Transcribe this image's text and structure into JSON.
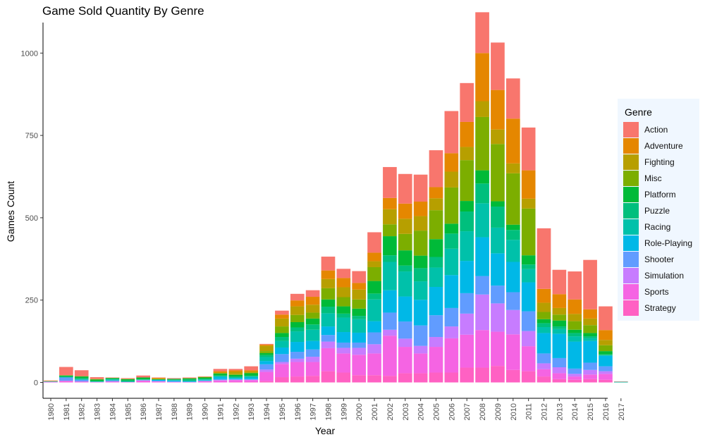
{
  "chart_data": {
    "type": "bar",
    "stacked": true,
    "title": "Game Sold Quantity By Genre",
    "xlabel": "Year",
    "ylabel": "Games Count",
    "ylim": [
      0,
      1090
    ],
    "yticks": [
      0,
      250,
      500,
      750,
      1000
    ],
    "legend_title": "Genre",
    "legend_position": "right",
    "grid": false,
    "categories": [
      "1980",
      "1981",
      "1982",
      "1983",
      "1984",
      "1985",
      "1986",
      "1987",
      "1988",
      "1989",
      "1990",
      "1991",
      "1992",
      "1993",
      "1994",
      "1995",
      "1996",
      "1997",
      "1998",
      "1999",
      "2000",
      "2001",
      "2002",
      "2003",
      "2004",
      "2005",
      "2006",
      "2007",
      "2008",
      "2009",
      "2010",
      "2011",
      "2012",
      "2013",
      "2014",
      "2015",
      "2016",
      "2017"
    ],
    "series": [
      {
        "name": "Strategy",
        "color": "#ff61c3",
        "values": [
          0,
          0,
          0,
          0,
          0,
          0,
          0,
          0,
          0,
          0,
          0,
          0,
          1,
          1,
          4,
          16,
          18,
          20,
          34,
          30,
          22,
          22,
          20,
          28,
          28,
          30,
          30,
          45,
          45,
          50,
          38,
          34,
          18,
          10,
          8,
          10,
          8,
          0
        ]
      },
      {
        "name": "Sports",
        "color": "#f564e3",
        "values": [
          1,
          5,
          3,
          1,
          3,
          1,
          6,
          3,
          1,
          1,
          4,
          6,
          6,
          6,
          28,
          40,
          44,
          42,
          70,
          58,
          62,
          66,
          122,
          80,
          60,
          78,
          104,
          100,
          114,
          104,
          108,
          76,
          22,
          18,
          10,
          14,
          18,
          0
        ]
      },
      {
        "name": "Simulation",
        "color": "#c77cff",
        "values": [
          0,
          0,
          0,
          0,
          0,
          0,
          0,
          0,
          1,
          0,
          0,
          1,
          1,
          1,
          7,
          6,
          10,
          16,
          20,
          17,
          21,
          28,
          18,
          25,
          23,
          30,
          36,
          64,
          108,
          86,
          74,
          46,
          18,
          18,
          8,
          14,
          8,
          0
        ]
      },
      {
        "name": "Shooter",
        "color": "#619cff",
        "values": [
          2,
          10,
          5,
          1,
          3,
          1,
          1,
          2,
          1,
          1,
          1,
          3,
          2,
          2,
          16,
          24,
          21,
          22,
          20,
          16,
          16,
          36,
          52,
          52,
          62,
          66,
          56,
          62,
          56,
          54,
          54,
          60,
          30,
          28,
          16,
          22,
          15,
          0
        ]
      },
      {
        "name": "Role-Playing",
        "color": "#00b8e7",
        "values": [
          0,
          0,
          0,
          0,
          0,
          0,
          1,
          3,
          3,
          2,
          2,
          7,
          3,
          5,
          10,
          20,
          30,
          26,
          26,
          32,
          30,
          34,
          68,
          76,
          78,
          86,
          100,
          98,
          118,
          98,
          92,
          88,
          62,
          74,
          82,
          66,
          32,
          0
        ]
      },
      {
        "name": "Racing",
        "color": "#00c1aa",
        "values": [
          0,
          1,
          2,
          1,
          3,
          0,
          1,
          0,
          1,
          0,
          2,
          2,
          2,
          4,
          12,
          20,
          32,
          34,
          40,
          44,
          41,
          66,
          86,
          76,
          56,
          59,
          80,
          90,
          103,
          78,
          67,
          40,
          18,
          14,
          16,
          8,
          2,
          2
        ]
      },
      {
        "name": "Puzzle",
        "color": "#00bf7d",
        "values": [
          0,
          2,
          3,
          1,
          3,
          4,
          0,
          0,
          1,
          5,
          2,
          2,
          3,
          1,
          6,
          12,
          12,
          16,
          20,
          12,
          10,
          18,
          20,
          18,
          40,
          32,
          46,
          60,
          60,
          64,
          30,
          14,
          12,
          8,
          10,
          6,
          2,
          0
        ]
      },
      {
        "name": "Platform",
        "color": "#00ba38",
        "values": [
          0,
          3,
          5,
          5,
          1,
          4,
          6,
          2,
          3,
          3,
          4,
          6,
          5,
          8,
          6,
          12,
          16,
          18,
          22,
          22,
          22,
          38,
          58,
          46,
          38,
          54,
          30,
          32,
          40,
          16,
          16,
          28,
          12,
          18,
          10,
          10,
          10,
          0
        ]
      },
      {
        "name": "Misc",
        "color": "#7cae00",
        "values": [
          1,
          1,
          1,
          1,
          1,
          0,
          0,
          0,
          0,
          1,
          1,
          1,
          2,
          1,
          6,
          20,
          22,
          18,
          34,
          28,
          28,
          42,
          36,
          50,
          76,
          88,
          110,
          124,
          162,
          174,
          156,
          142,
          22,
          18,
          26,
          24,
          18,
          0
        ]
      },
      {
        "name": "Fighting",
        "color": "#b79f00",
        "values": [
          1,
          0,
          0,
          0,
          0,
          1,
          0,
          2,
          0,
          0,
          1,
          2,
          7,
          4,
          16,
          24,
          26,
          24,
          28,
          30,
          30,
          18,
          46,
          46,
          44,
          36,
          48,
          40,
          48,
          44,
          30,
          30,
          28,
          20,
          22,
          20,
          16,
          0
        ]
      },
      {
        "name": "Adventure",
        "color": "#e58700",
        "values": [
          0,
          0,
          0,
          1,
          0,
          0,
          0,
          2,
          0,
          0,
          0,
          4,
          5,
          4,
          4,
          12,
          18,
          24,
          26,
          28,
          20,
          26,
          34,
          46,
          44,
          34,
          56,
          76,
          146,
          120,
          136,
          86,
          42,
          42,
          44,
          28,
          30,
          0
        ]
      },
      {
        "name": "Action",
        "color": "#f8766d",
        "values": [
          1,
          25,
          18,
          5,
          1,
          2,
          6,
          1,
          2,
          2,
          1,
          7,
          4,
          12,
          2,
          12,
          20,
          20,
          42,
          28,
          36,
          62,
          94,
          90,
          82,
          112,
          128,
          118,
          124,
          144,
          122,
          130,
          184,
          74,
          85,
          150,
          72,
          1
        ]
      }
    ]
  }
}
